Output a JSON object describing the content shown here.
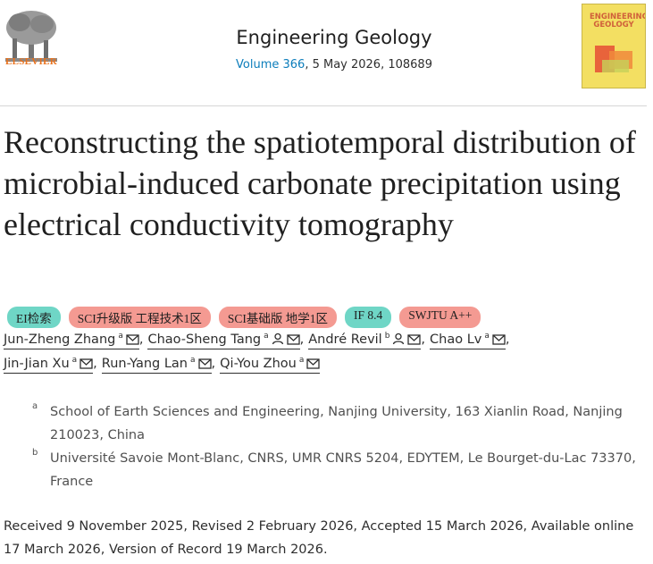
{
  "header": {
    "publisher": "ELSEVIER",
    "journal": "Engineering Geology",
    "volume": "Volume 366",
    "issue_detail": ", 5 May 2026, 108689",
    "cover_title": "ENGINEERING GEOLOGY"
  },
  "title": "Reconstructing the spatiotemporal distribution of microbial-induced carbonate precipitation using electrical conductivity tomography",
  "badges": [
    "EI检索",
    "SCI升级版 工程技术1区",
    "SCI基础版 地学1区",
    "IF 8.4",
    "SWJTU A++"
  ],
  "authors": [
    {
      "name": "Jun-Zheng Zhang",
      "aff": "a",
      "corresponding": false,
      "sep": ","
    },
    {
      "name": "Chao-Sheng Tang",
      "aff": "a",
      "corresponding": true,
      "sep": ","
    },
    {
      "name": "André Revil",
      "aff": "b",
      "corresponding": true,
      "sep": ","
    },
    {
      "name": "Chao Lv",
      "aff": "a",
      "corresponding": false,
      "sep": ","
    },
    {
      "name": "Jin-Jian Xu",
      "aff": "a",
      "corresponding": false,
      "sep": ","
    },
    {
      "name": "Run-Yang Lan",
      "aff": "a",
      "corresponding": false,
      "sep": ","
    },
    {
      "name": "Qi-You Zhou",
      "aff": "a",
      "corresponding": false
    }
  ],
  "affiliations": [
    {
      "label": "a",
      "text": "School of Earth Sciences and Engineering, Nanjing University, 163 Xianlin Road, Nanjing 210023, China"
    },
    {
      "label": "b",
      "text": "Université Savoie Mont-Blanc, CNRS, UMR CNRS 5204, EDYTEM, Le Bourget-du-Lac 73370, France"
    }
  ],
  "history": "Received 9 November 2025, Revised 2 February 2026, Accepted 15 March 2026, Available online 17 March 2026, Version of Record 19 March 2026."
}
